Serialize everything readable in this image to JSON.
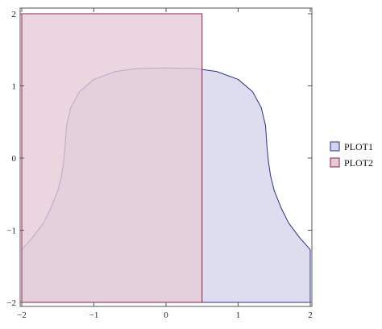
{
  "chart_data": {
    "type": "area",
    "title": "",
    "xlabel": "",
    "ylabel": "",
    "xlim": [
      -2,
      2
    ],
    "ylim": [
      -2,
      2
    ],
    "x_ticks": [
      -2,
      -1,
      0,
      1,
      2
    ],
    "y_ticks": [
      -2,
      -1,
      0,
      1,
      2
    ],
    "x_tick_labels": [
      "−2",
      "−1",
      "0",
      "1",
      "2"
    ],
    "y_tick_labels": [
      "−2",
      "−1",
      "0",
      "1",
      "2"
    ],
    "frame": true,
    "grid": false,
    "legend_position": "right",
    "series": [
      {
        "name": "PLOT1",
        "fill": "#d3d3ea",
        "stroke": "#2a2f8f",
        "x": [
          -2.0,
          -1.85,
          -1.7,
          -1.6,
          -1.5,
          -1.45,
          -1.42,
          -1.4,
          -1.38,
          -1.32,
          -1.2,
          -1.0,
          -0.7,
          -0.4,
          0.0,
          0.4,
          0.7,
          1.0,
          1.2,
          1.32,
          1.38,
          1.4,
          1.42,
          1.45,
          1.5,
          1.6,
          1.7,
          1.85,
          2.0,
          2.0,
          -2.0
        ],
        "y": [
          -1.27,
          -1.1,
          -0.9,
          -0.7,
          -0.45,
          -0.25,
          -0.05,
          0.15,
          0.45,
          0.7,
          0.92,
          1.09,
          1.2,
          1.24,
          1.25,
          1.24,
          1.2,
          1.09,
          0.92,
          0.7,
          0.45,
          0.15,
          -0.05,
          -0.25,
          -0.45,
          -0.7,
          -0.9,
          -1.1,
          -1.27,
          -2.0,
          -2.0
        ]
      },
      {
        "name": "PLOT2",
        "fill": "#e5cbd7",
        "stroke": "#8a1f4a",
        "x": [
          -2.0,
          0.5,
          0.5,
          -2.0
        ],
        "y": [
          -2.0,
          -2.0,
          2.0,
          2.0
        ]
      }
    ]
  }
}
